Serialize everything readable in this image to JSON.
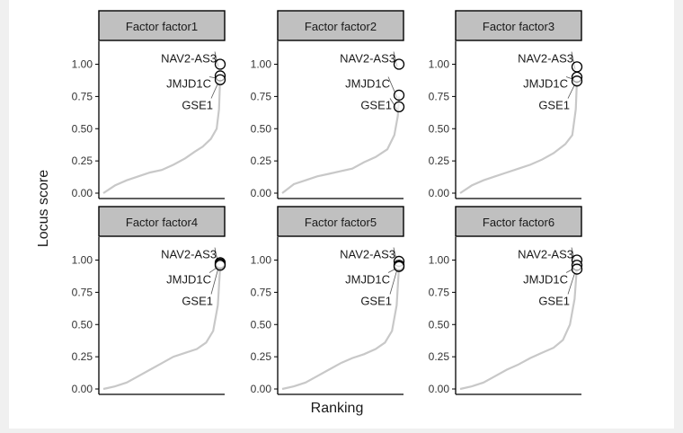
{
  "chart_data": {
    "type": "scatter",
    "ylabel": "Locus score",
    "xlabel": "Ranking",
    "y_ticks": [
      "0.00",
      "0.25",
      "0.50",
      "0.75",
      "1.00"
    ],
    "ylim": [
      0,
      1.15
    ],
    "grid": false,
    "colors": {
      "curve": "#c8c8c8",
      "strip": "#c0c0c0",
      "marker": "#000000",
      "text": "#1a1a1a"
    },
    "panels": [
      {
        "strip": "Factor factor1",
        "curve": [
          [
            0,
            0
          ],
          [
            0.1,
            0.06
          ],
          [
            0.2,
            0.1
          ],
          [
            0.3,
            0.13
          ],
          [
            0.4,
            0.16
          ],
          [
            0.5,
            0.18
          ],
          [
            0.6,
            0.22
          ],
          [
            0.7,
            0.27
          ],
          [
            0.78,
            0.32
          ],
          [
            0.85,
            0.36
          ],
          [
            0.92,
            0.42
          ],
          [
            0.97,
            0.5
          ],
          [
            0.99,
            0.65
          ],
          [
            1,
            0.9
          ]
        ],
        "points": [
          {
            "label": "NAV2-AS3",
            "y": 1.0
          },
          {
            "label": "JMJD1C",
            "y": 0.91
          },
          {
            "label": "GSE1",
            "y": 0.88
          }
        ]
      },
      {
        "strip": "Factor factor2",
        "curve": [
          [
            0,
            0
          ],
          [
            0.1,
            0.07
          ],
          [
            0.2,
            0.1
          ],
          [
            0.3,
            0.13
          ],
          [
            0.4,
            0.15
          ],
          [
            0.5,
            0.17
          ],
          [
            0.6,
            0.19
          ],
          [
            0.7,
            0.24
          ],
          [
            0.8,
            0.28
          ],
          [
            0.9,
            0.34
          ],
          [
            0.96,
            0.45
          ],
          [
            0.99,
            0.6
          ],
          [
            1,
            0.75
          ]
        ],
        "points": [
          {
            "label": "NAV2-AS3",
            "y": 1.0
          },
          {
            "label": "JMJD1C",
            "y": 0.76
          },
          {
            "label": "GSE1",
            "y": 0.67
          }
        ]
      },
      {
        "strip": "Factor factor3",
        "curve": [
          [
            0,
            0
          ],
          [
            0.1,
            0.06
          ],
          [
            0.2,
            0.1
          ],
          [
            0.3,
            0.13
          ],
          [
            0.4,
            0.16
          ],
          [
            0.5,
            0.19
          ],
          [
            0.6,
            0.22
          ],
          [
            0.7,
            0.26
          ],
          [
            0.8,
            0.31
          ],
          [
            0.9,
            0.38
          ],
          [
            0.96,
            0.45
          ],
          [
            0.99,
            0.65
          ],
          [
            1,
            0.88
          ]
        ],
        "points": [
          {
            "label": "NAV2-AS3",
            "y": 0.98
          },
          {
            "label": "JMJD1C",
            "y": 0.9
          },
          {
            "label": "GSE1",
            "y": 0.87
          }
        ]
      },
      {
        "strip": "Factor factor4",
        "curve": [
          [
            0,
            0
          ],
          [
            0.1,
            0.02
          ],
          [
            0.2,
            0.05
          ],
          [
            0.3,
            0.1
          ],
          [
            0.4,
            0.15
          ],
          [
            0.5,
            0.2
          ],
          [
            0.6,
            0.25
          ],
          [
            0.7,
            0.28
          ],
          [
            0.8,
            0.31
          ],
          [
            0.88,
            0.36
          ],
          [
            0.94,
            0.45
          ],
          [
            0.98,
            0.65
          ],
          [
            1,
            0.95
          ]
        ],
        "points": [
          {
            "label": "NAV2-AS3",
            "y": 0.98
          },
          {
            "label": "JMJD1C",
            "y": 0.97
          },
          {
            "label": "GSE1",
            "y": 0.96
          }
        ]
      },
      {
        "strip": "Factor factor5",
        "curve": [
          [
            0,
            0
          ],
          [
            0.1,
            0.02
          ],
          [
            0.2,
            0.05
          ],
          [
            0.3,
            0.1
          ],
          [
            0.4,
            0.15
          ],
          [
            0.5,
            0.2
          ],
          [
            0.6,
            0.24
          ],
          [
            0.7,
            0.27
          ],
          [
            0.8,
            0.31
          ],
          [
            0.88,
            0.36
          ],
          [
            0.94,
            0.45
          ],
          [
            0.98,
            0.65
          ],
          [
            1,
            0.95
          ]
        ],
        "points": [
          {
            "label": "NAV2-AS3",
            "y": 0.99
          },
          {
            "label": "JMJD1C",
            "y": 0.96
          },
          {
            "label": "GSE1",
            "y": 0.95
          }
        ]
      },
      {
        "strip": "Factor factor6",
        "curve": [
          [
            0,
            0
          ],
          [
            0.1,
            0.02
          ],
          [
            0.2,
            0.05
          ],
          [
            0.3,
            0.1
          ],
          [
            0.4,
            0.15
          ],
          [
            0.5,
            0.19
          ],
          [
            0.6,
            0.24
          ],
          [
            0.7,
            0.28
          ],
          [
            0.8,
            0.32
          ],
          [
            0.88,
            0.38
          ],
          [
            0.94,
            0.5
          ],
          [
            0.98,
            0.7
          ],
          [
            1,
            0.95
          ]
        ],
        "points": [
          {
            "label": "NAV2-AS3",
            "y": 1.0
          },
          {
            "label": "JMJD1C",
            "y": 0.96
          },
          {
            "label": "GSE1",
            "y": 0.93
          }
        ]
      }
    ]
  }
}
